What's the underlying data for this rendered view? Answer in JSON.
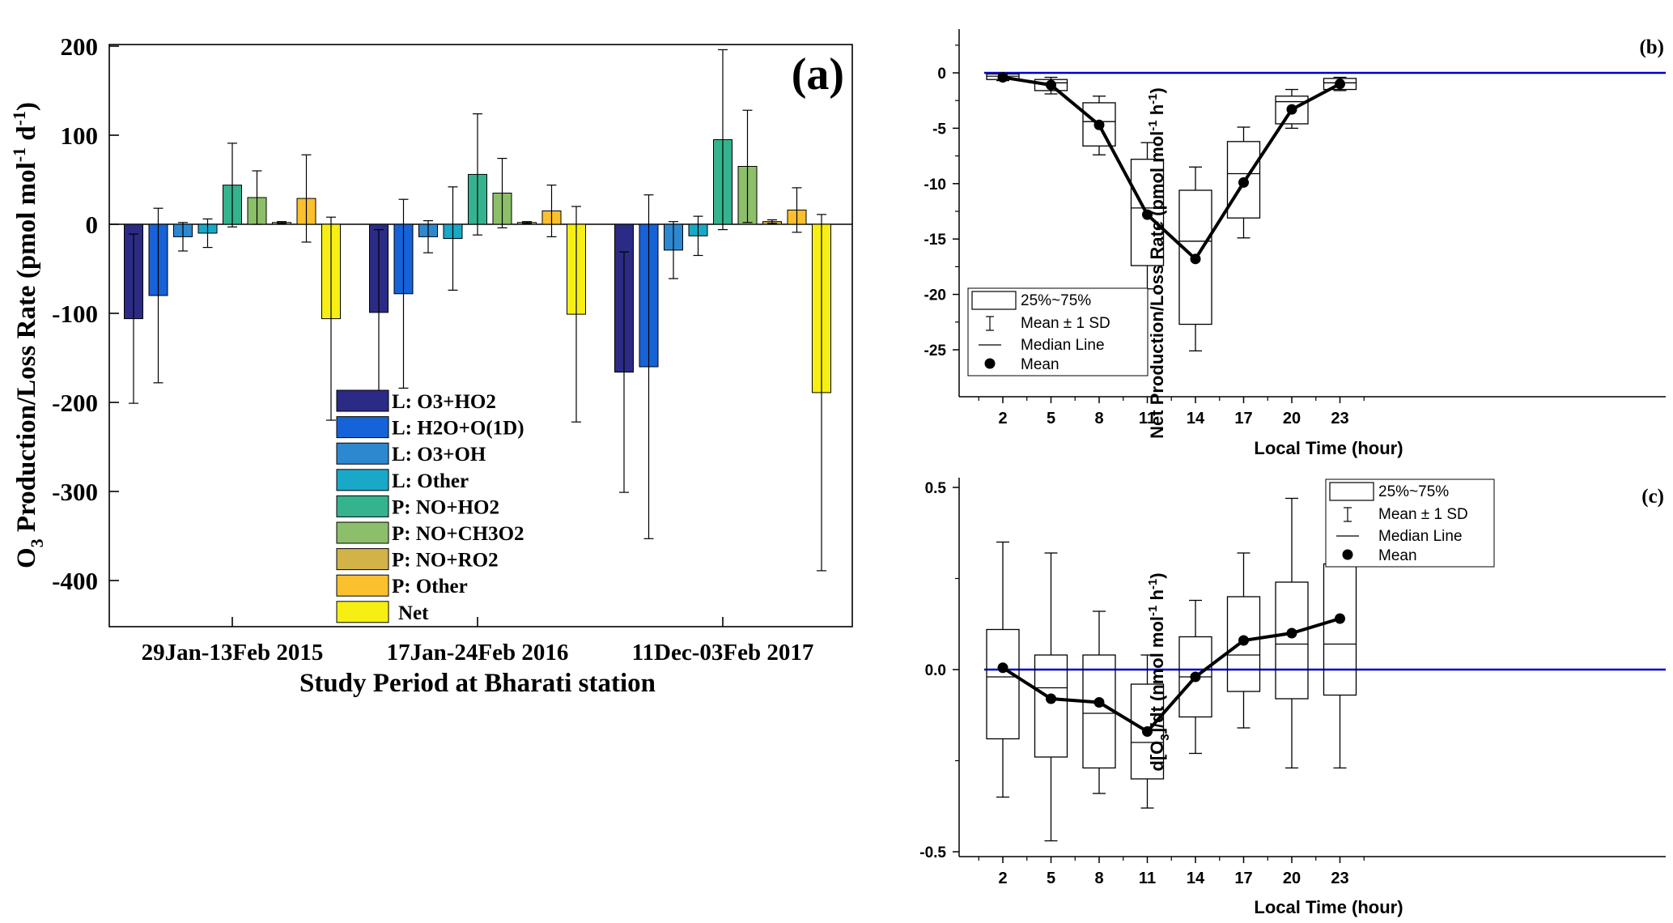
{
  "chart_data": [
    {
      "id": "a",
      "type": "bar",
      "panel_label": "(a)",
      "xlabel": "Study Period at Bharati station",
      "ylabel_main": "O",
      "ylabel_sub": "3",
      "ylabel_text": " Production/Loss Rate (pmol mol",
      "ylabel_sup1": "-1",
      "ylabel_mid": " d",
      "ylabel_sup2": "-1",
      "ylabel_end": ")",
      "ylim": [
        -450,
        200
      ],
      "yticks": [
        200,
        100,
        0,
        -100,
        -200,
        -300,
        -400
      ],
      "categories": [
        "29Jan-13Feb 2015",
        "17Jan-24Feb 2016",
        "11Dec-03Feb 2017"
      ],
      "series": [
        {
          "name": "L: O3+HO2",
          "color": "#2b2b86",
          "values": [
            -106,
            -99,
            -166
          ],
          "sd": [
            95,
            93,
            135
          ]
        },
        {
          "name": "L: H2O+O(1D)",
          "color": "#1663d9",
          "values": [
            -80,
            -78,
            -160
          ],
          "sd": [
            98,
            106,
            193
          ]
        },
        {
          "name": "L: O3+OH",
          "color": "#2e88d0",
          "values": [
            -14,
            -14,
            -29
          ],
          "sd": [
            16,
            18,
            32
          ]
        },
        {
          "name": "L: Other",
          "color": "#1aa8c8",
          "values": [
            -10,
            -16,
            -13
          ],
          "sd": [
            16,
            58,
            22
          ]
        },
        {
          "name": "P: NO+HO2",
          "color": "#35b38e",
          "values": [
            44,
            56,
            95
          ],
          "sd": [
            47,
            68,
            101
          ]
        },
        {
          "name": "P: NO+CH3O2",
          "color": "#8dbf6a",
          "values": [
            30,
            35,
            65
          ],
          "sd": [
            30,
            39,
            63
          ]
        },
        {
          "name": "P: NO+RO2",
          "color": "#d3b347",
          "values": [
            2,
            2,
            3
          ],
          "sd": [
            1,
            1,
            2
          ]
        },
        {
          "name": "P: Other",
          "color": "#fbc02d",
          "values": [
            29,
            15,
            16
          ],
          "sd": [
            49,
            29,
            25
          ]
        },
        {
          "name": "Net",
          "color": "#f7ef14",
          "values": [
            -106,
            -101,
            -189
          ],
          "sd": [
            114,
            121,
            200
          ]
        }
      ],
      "legend_position": "bottom-center"
    },
    {
      "id": "b",
      "type": "box",
      "panel_label": "(b)",
      "xlabel": "Local Time (hour)",
      "ylabel": "Net Production/Loss Rate (pmol mol",
      "ylabel_sup1": "-1",
      "ylabel_mid": " h",
      "ylabel_sup2": "-1",
      "ylabel_end": ")",
      "ylim": [
        -27,
        2.5
      ],
      "yticks": [
        0,
        -5,
        -10,
        -15,
        -20,
        -25
      ],
      "x": [
        2,
        5,
        8,
        11,
        14,
        17,
        20,
        23
      ],
      "q1": [
        -0.6,
        -1.6,
        -6.6,
        -17.4,
        -22.7,
        -13.1,
        -4.6,
        -1.5
      ],
      "q3": [
        -0.1,
        -0.6,
        -2.7,
        -7.8,
        -10.6,
        -6.2,
        -2.1,
        -0.5
      ],
      "median": [
        -0.3,
        -0.9,
        -4.4,
        -12.2,
        -15.2,
        -9.1,
        -2.6,
        -0.9
      ],
      "mean": [
        -0.4,
        -1.1,
        -4.7,
        -12.8,
        -16.8,
        -9.9,
        -3.3,
        -1.0
      ],
      "sd_low": [
        -0.7,
        -1.9,
        -7.4,
        -19.5,
        -25.1,
        -14.9,
        -5.0,
        -1.6
      ],
      "sd_high": [
        -0.1,
        -0.4,
        -2.1,
        -6.3,
        -8.5,
        -4.9,
        -1.5,
        -0.4
      ],
      "reference_line": 0,
      "reference_color": "#0000cc",
      "legend_position": "bottom-left",
      "legend": [
        "25%~75%",
        "Mean ± 1 SD",
        "Median Line",
        "Mean"
      ]
    },
    {
      "id": "c",
      "type": "box",
      "panel_label": "(c)",
      "xlabel": "Local Time (hour)",
      "ylabel_a": "d[O",
      "ylabel_sub": "3",
      "ylabel_b": "]/dt (nmol mol",
      "ylabel_sup1": "-1",
      "ylabel_mid": " h",
      "ylabel_sup2": "-1",
      "ylabel_end": ")",
      "ylim": [
        -0.5,
        0.5
      ],
      "yticks": [
        0.5,
        0.0,
        -0.5
      ],
      "ytick_labels": [
        "0.5",
        "0.0",
        "-0.5"
      ],
      "x": [
        2,
        5,
        8,
        11,
        14,
        17,
        20,
        23
      ],
      "q1": [
        -0.19,
        -0.24,
        -0.27,
        -0.3,
        -0.13,
        -0.06,
        -0.08,
        -0.07
      ],
      "q3": [
        0.11,
        0.04,
        0.04,
        -0.04,
        0.09,
        0.2,
        0.24,
        0.29
      ],
      "median": [
        -0.02,
        -0.05,
        -0.12,
        -0.2,
        -0.02,
        0.04,
        0.07,
        0.07
      ],
      "mean": [
        0.005,
        -0.08,
        -0.09,
        -0.17,
        -0.02,
        0.08,
        0.1,
        0.14
      ],
      "sd_low": [
        -0.35,
        -0.47,
        -0.34,
        -0.38,
        -0.23,
        -0.16,
        -0.27,
        -0.27
      ],
      "sd_high": [
        0.35,
        0.32,
        0.16,
        0.04,
        0.19,
        0.32,
        0.47,
        0.5
      ],
      "reference_line": 0,
      "reference_color": "#0000cc",
      "legend_position": "top-center",
      "legend": [
        "25%~75%",
        "Mean ± 1 SD",
        "Median Line",
        "Mean"
      ]
    }
  ]
}
